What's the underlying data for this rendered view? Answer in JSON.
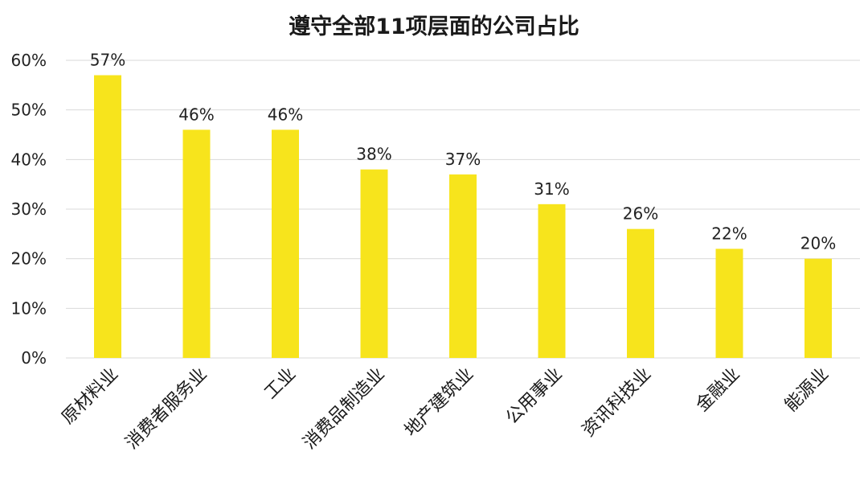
{
  "chart_data": {
    "type": "bar",
    "title": "遵守全部11项层面的公司占比",
    "categories": [
      "原材料业",
      "消费者服务业",
      "工业",
      "消费品制造业",
      "地产建筑业",
      "公用事业",
      "资讯科技业",
      "金融业",
      "能源业"
    ],
    "values": [
      57,
      46,
      46,
      38,
      37,
      31,
      26,
      22,
      20
    ],
    "value_labels": [
      "57%",
      "46%",
      "46%",
      "38%",
      "37%",
      "31%",
      "26%",
      "22%",
      "20%"
    ],
    "ylim": [
      0,
      60
    ],
    "yticks": [
      "0%",
      "10%",
      "20%",
      "30%",
      "40%",
      "50%",
      "60%"
    ],
    "xlabel": "",
    "ylabel": "",
    "grid": true,
    "bar_color": "#f7e41c",
    "grid_color": "#d9d9d9"
  }
}
